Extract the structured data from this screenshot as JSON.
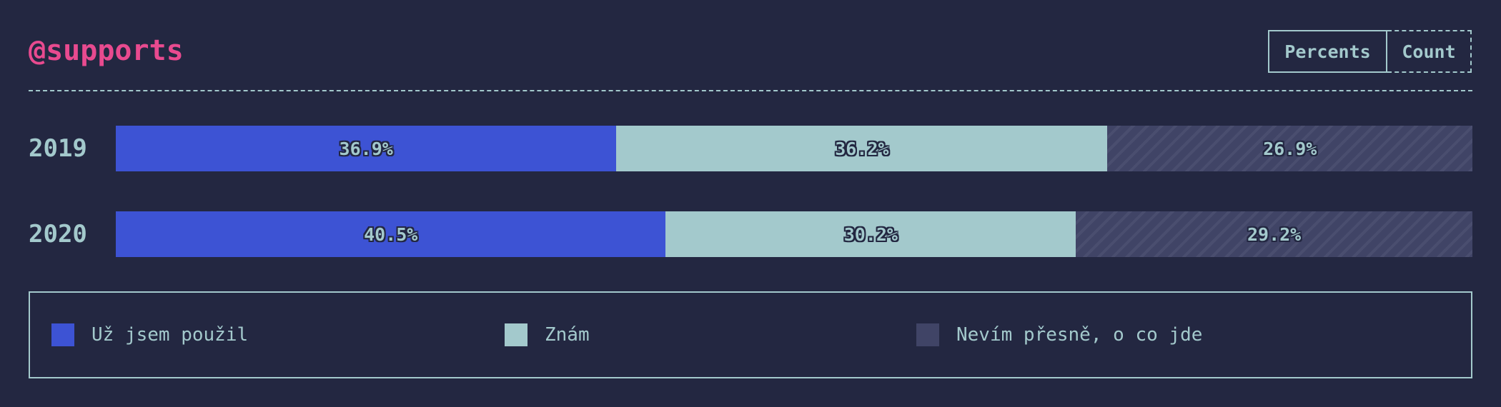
{
  "header": {
    "title": "@supports",
    "toggle": [
      {
        "label": "Percents",
        "active": true
      },
      {
        "label": "Count",
        "active": false
      }
    ]
  },
  "colors": {
    "background": "#232741",
    "title": "#e84a8f",
    "text": "#a3c9cc",
    "used": "#3d53d4",
    "know": "#a3c9cc",
    "unknown": "#404466"
  },
  "chart_data": {
    "type": "bar",
    "orientation": "horizontal",
    "stacked": true,
    "normalized": true,
    "categories": [
      "2019",
      "2020"
    ],
    "series": [
      {
        "name": "Už jsem použil",
        "values": [
          36.9,
          40.5
        ],
        "labels": [
          "36.9%",
          "40.5%"
        ],
        "color": "#3d53d4",
        "pattern": "solid"
      },
      {
        "name": "Znám",
        "values": [
          36.2,
          30.2
        ],
        "labels": [
          "36.2%",
          "30.2%"
        ],
        "color": "#a3c9cc",
        "pattern": "solid"
      },
      {
        "name": "Nevím přesně, o co jde",
        "values": [
          26.9,
          29.2
        ],
        "labels": [
          "26.9%",
          "29.2%"
        ],
        "color": "#404466",
        "pattern": "hatched"
      }
    ],
    "xlim": [
      0,
      100
    ],
    "legend": "bottom",
    "grid": false
  }
}
